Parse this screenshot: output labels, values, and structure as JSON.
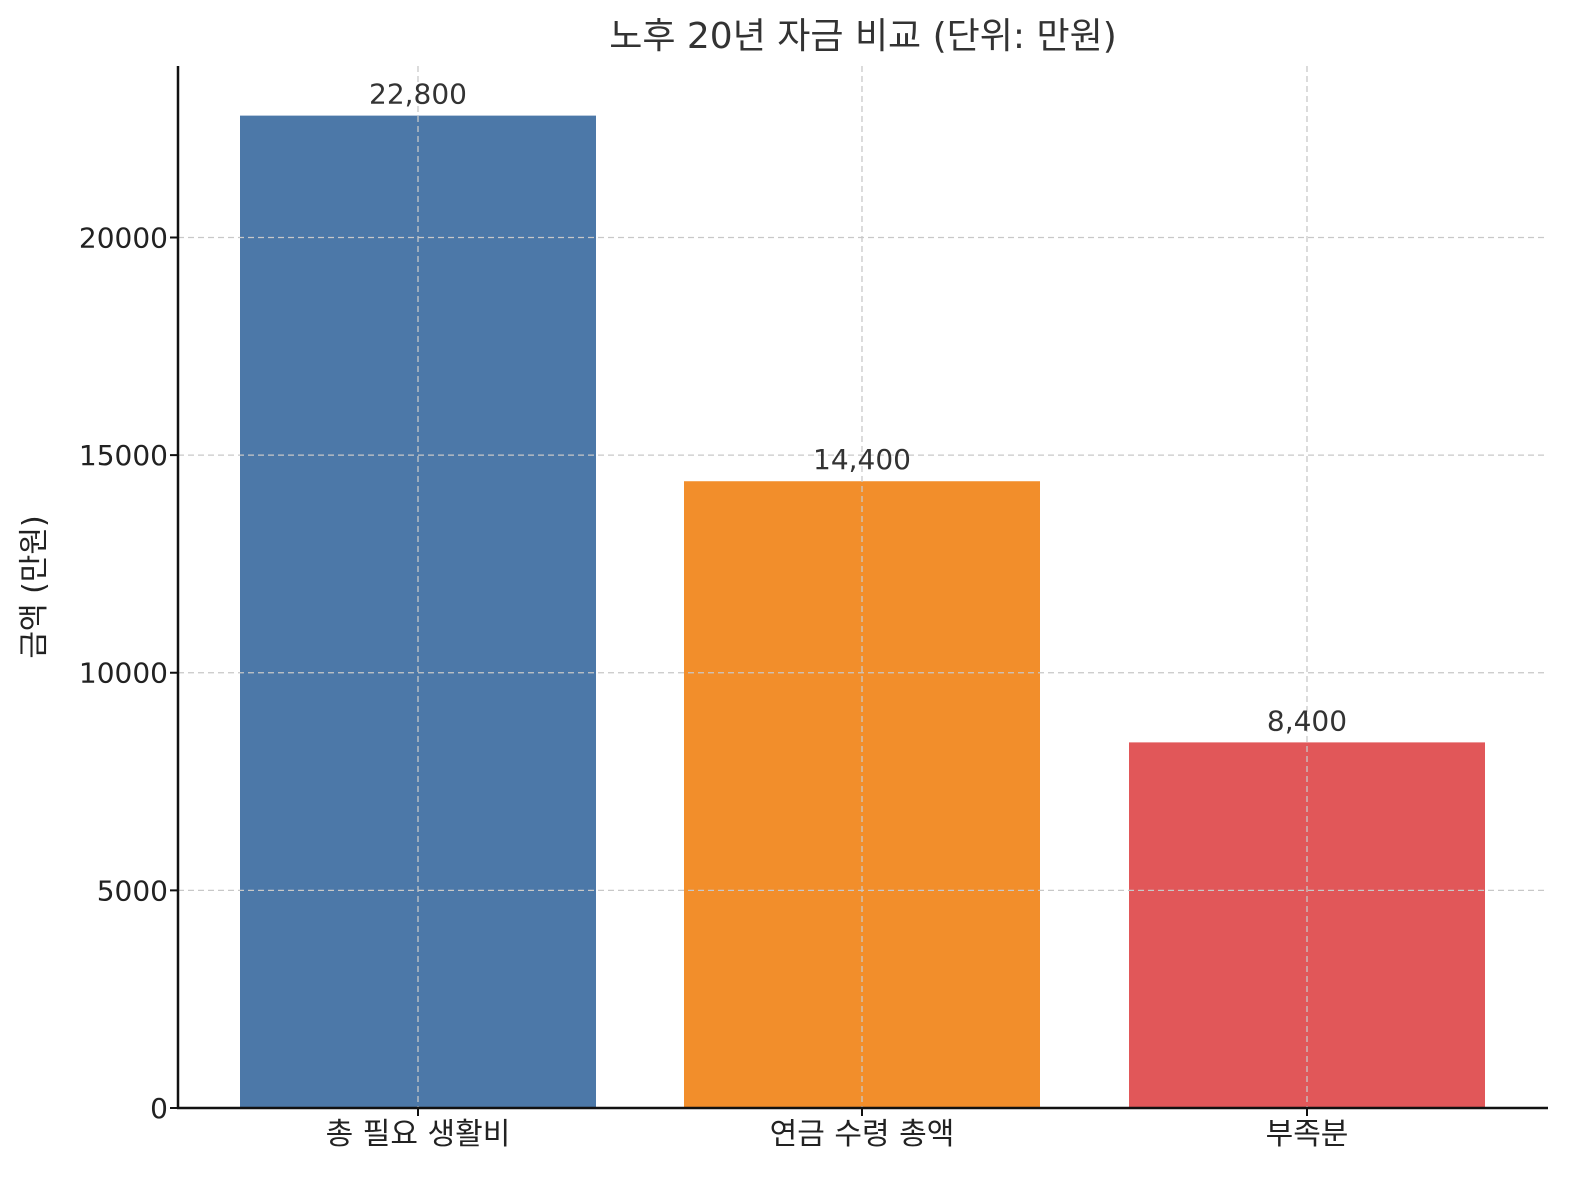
{
  "chart_data": {
    "type": "bar",
    "title": "노후 20년 자금 비교 (단위: 만원)",
    "xlabel": "",
    "ylabel": "금액 (만원)",
    "categories": [
      "총 필요 생활비",
      "연금 수령 총액",
      "부족분"
    ],
    "values": [
      22800,
      14400,
      8400
    ],
    "data_labels": [
      "22,800",
      "14,400",
      "8,400"
    ],
    "colors": [
      "#4c78a8",
      "#f28e2b",
      "#e15759"
    ],
    "ylim": [
      0,
      23940
    ],
    "yticks": [
      0,
      5000,
      10000,
      15000,
      20000
    ],
    "ytick_labels": [
      "0",
      "5000",
      "10000",
      "15000",
      "20000"
    ],
    "grid": true,
    "legend": "none"
  }
}
